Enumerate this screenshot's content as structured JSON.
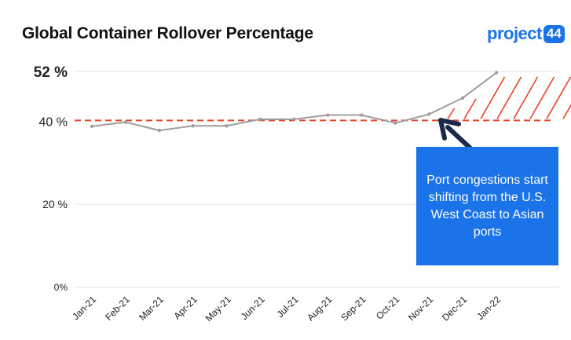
{
  "header": {
    "title": "Global Container Rollover Percentage",
    "logo_text": "project",
    "logo_badge": "44"
  },
  "callout": {
    "text": "Port congestions start shifting from the U.S. West Coast to Asian ports"
  },
  "colors": {
    "line": "#9e9e9e",
    "reference_line": "#e8432b",
    "hatch": "#e8432b",
    "callout_bg": "#1a73e8",
    "arrow": "#1b2a4a",
    "brand": "#1a73e8"
  },
  "chart_data": {
    "type": "line",
    "title": "Global Container Rollover Percentage",
    "categories": [
      "Jan-21",
      "Feb-21",
      "Mar-21",
      "Apr-21",
      "May-21",
      "Jun-21",
      "Jul-21",
      "Aug-21",
      "Sep-21",
      "Oct-21",
      "Nov-21",
      "Dec-21",
      "Jan-22"
    ],
    "series": [
      {
        "values": [
          38.8,
          39.8,
          37.8,
          38.9,
          38.9,
          40.5,
          40.5,
          41.5,
          41.5,
          39.6,
          41.7,
          45.6,
          51.7
        ]
      }
    ],
    "reference_line": 40.2,
    "ylim": [
      0,
      52
    ],
    "y_ticks": [
      {
        "value": 0,
        "label": "0%"
      },
      {
        "value": 20,
        "label": "20 %"
      },
      {
        "value": 40,
        "label": "40 %"
      },
      {
        "value": 52,
        "label": "52 %"
      }
    ],
    "grid": true
  }
}
